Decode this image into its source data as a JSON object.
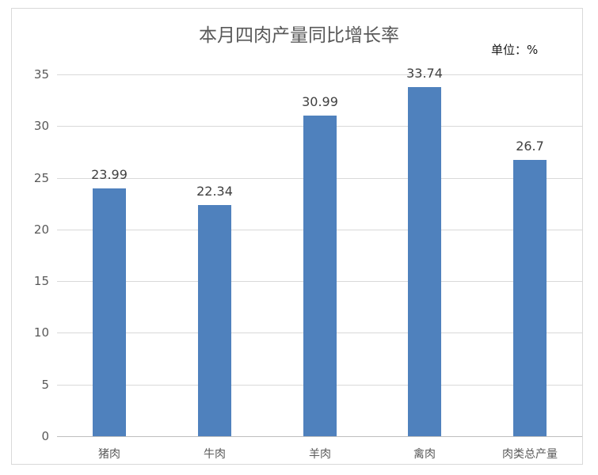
{
  "chart_data": {
    "type": "bar",
    "title": "本月四肉产量同比增长率",
    "unit_label": "单位：%",
    "xlabel": "",
    "ylabel": "",
    "categories": [
      "猪肉",
      "牛肉",
      "羊肉",
      "禽肉",
      "肉类总产量"
    ],
    "values": [
      23.99,
      22.34,
      30.99,
      33.74,
      26.7
    ],
    "value_labels": [
      "23.99",
      "22.34",
      "30.99",
      "33.74",
      "26.7"
    ],
    "yticks": [
      "0",
      "5",
      "10",
      "15",
      "20",
      "25",
      "30",
      "35"
    ],
    "ylim": [
      0,
      35
    ],
    "grid": true,
    "legend": "none",
    "bar_color": "#4f81bd"
  }
}
